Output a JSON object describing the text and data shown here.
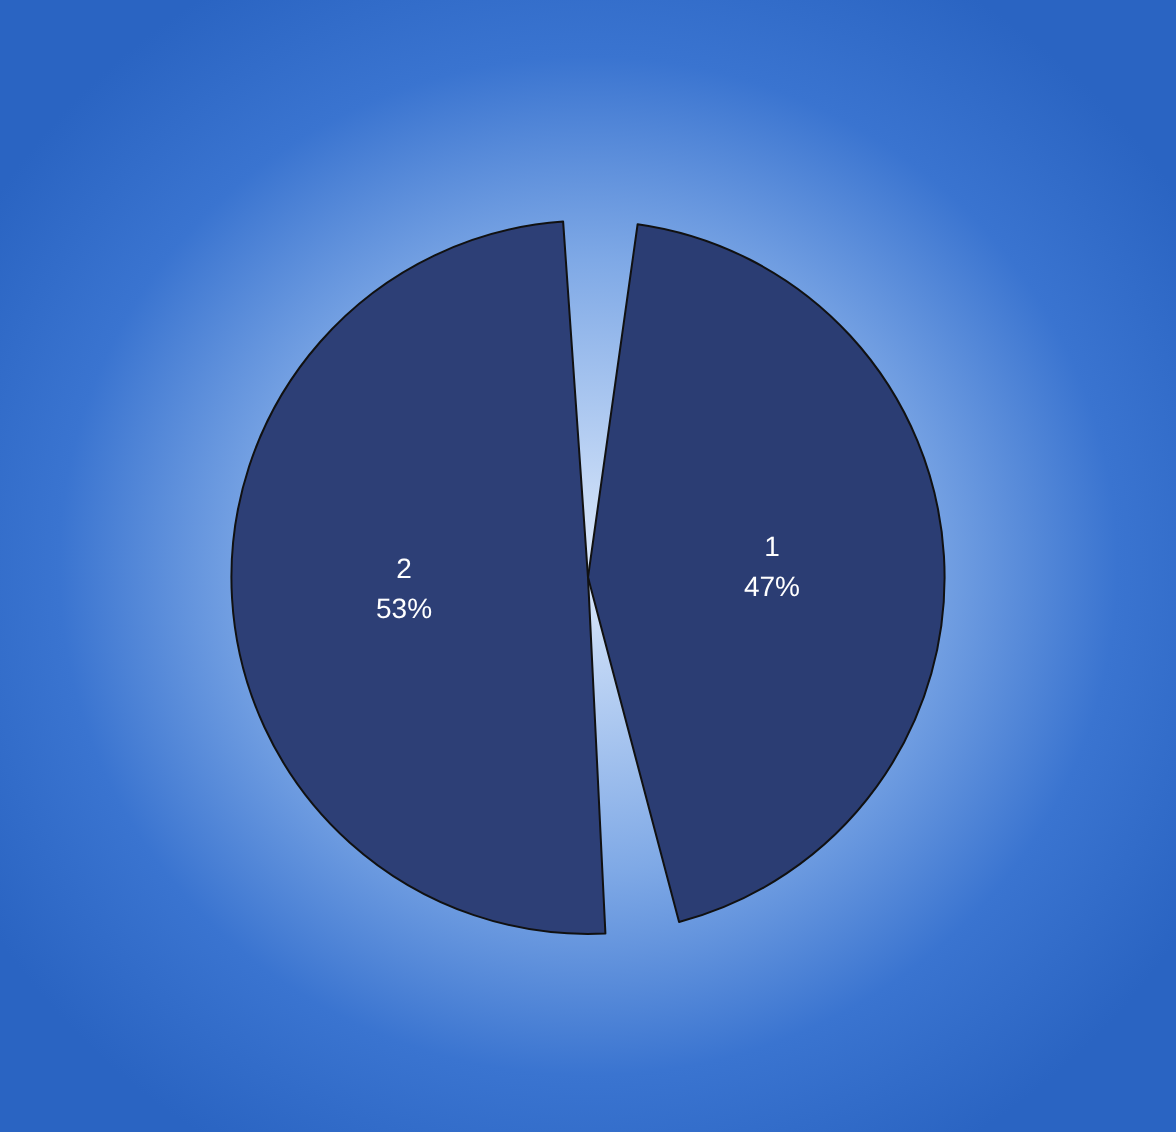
{
  "chart_data": {
    "type": "pie",
    "categories": [
      "1",
      "2"
    ],
    "values": [
      47,
      53
    ],
    "colors": [
      "#2b3d73",
      "#2d3f76"
    ],
    "value_labels": [
      "47%",
      "53%"
    ]
  }
}
